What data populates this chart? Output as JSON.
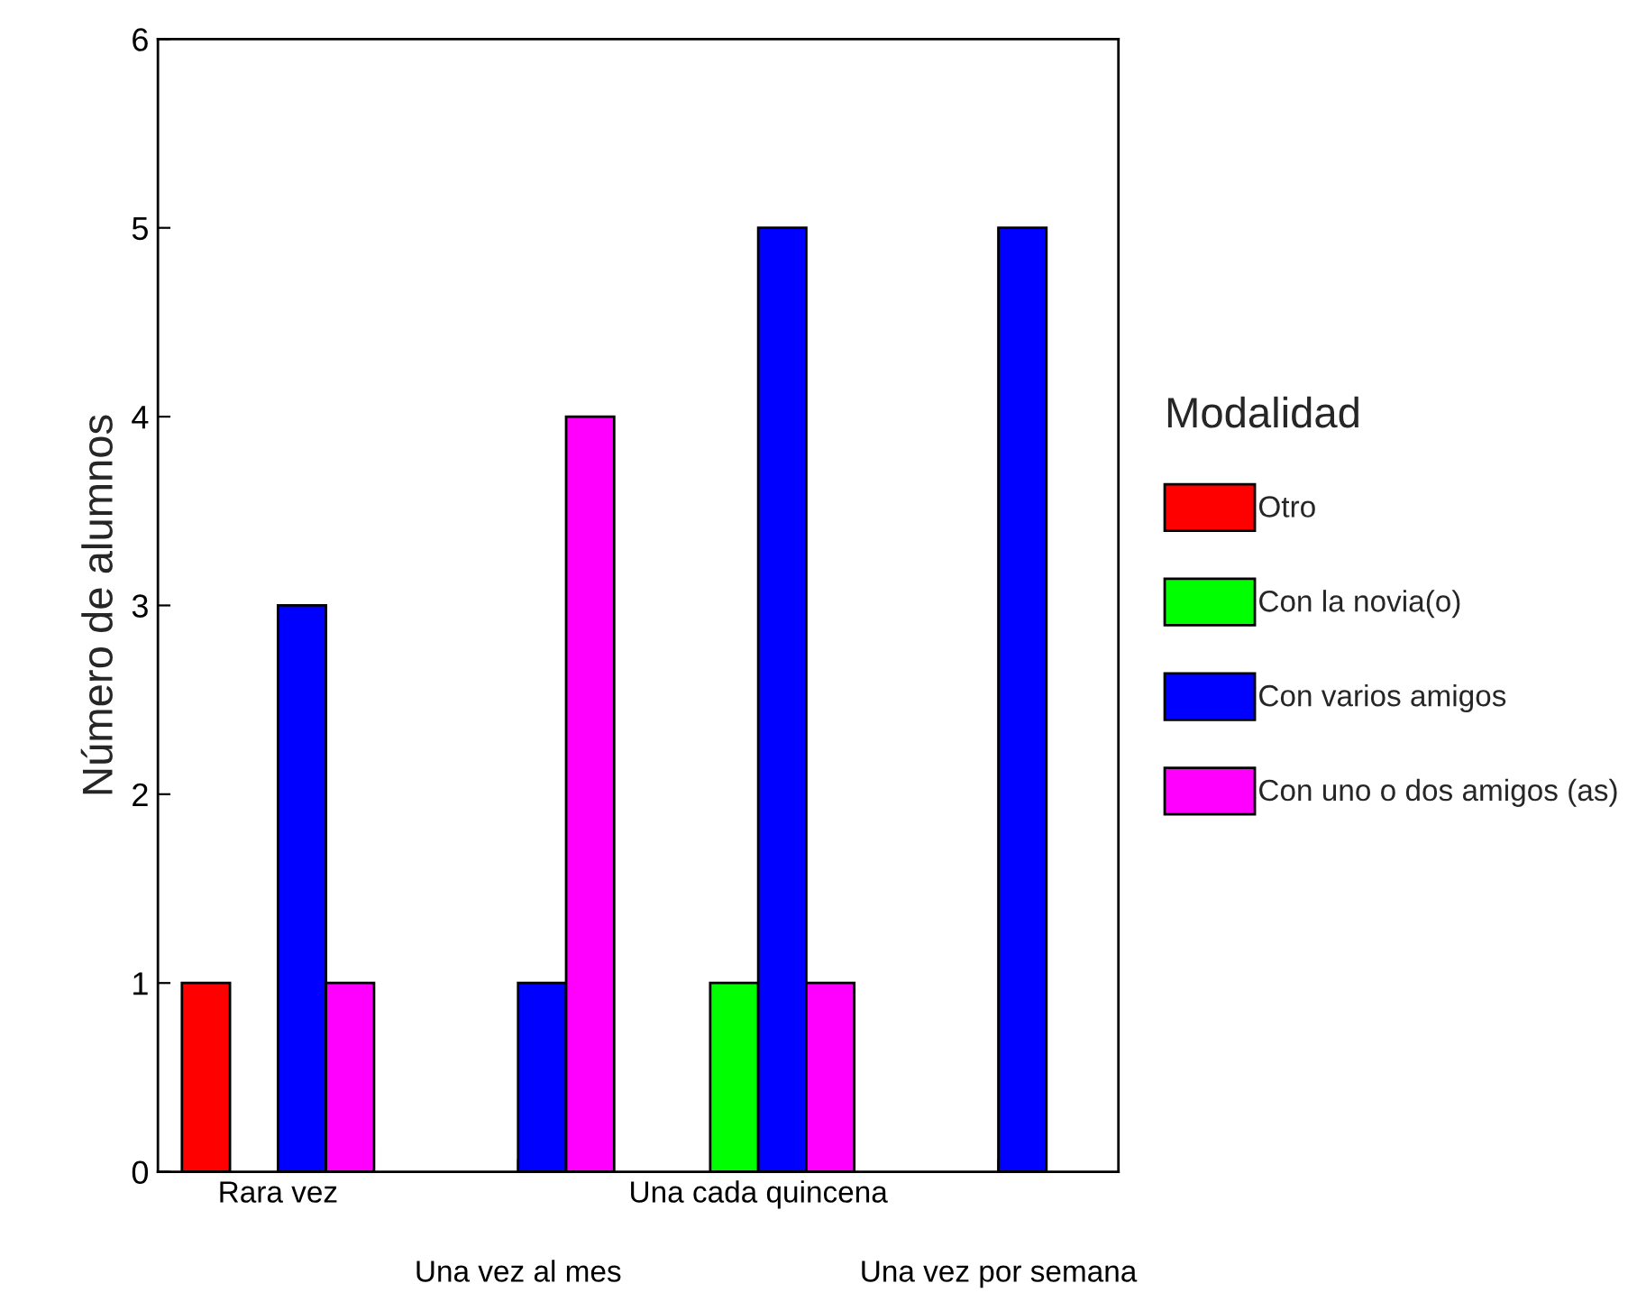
{
  "chart_data": {
    "type": "bar",
    "ylabel": "Número de alumnos",
    "legend_title": "Modalidad",
    "categories": [
      "Rara vez",
      "Una vez al mes",
      "Una cada quincena",
      "Una vez por semana"
    ],
    "series": [
      {
        "name": "Otro",
        "color": "#ff0000",
        "values": [
          1,
          null,
          null,
          null
        ]
      },
      {
        "name": "Con la novia(o)",
        "color": "#00ff00",
        "values": [
          null,
          null,
          1,
          null
        ]
      },
      {
        "name": "Con varios amigos",
        "color": "#0000ff",
        "values": [
          3,
          1,
          5,
          5
        ]
      },
      {
        "name": "Con uno o dos amigos (as)",
        "color": "#ff00ff",
        "values": [
          1,
          4,
          1,
          null
        ]
      }
    ],
    "ylim": [
      0,
      6
    ],
    "yticks": [
      0,
      1,
      2,
      3,
      4,
      5,
      6
    ],
    "grid": false,
    "legend": "right"
  }
}
